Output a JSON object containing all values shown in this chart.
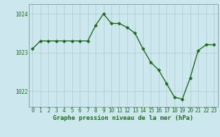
{
  "hours": [
    0,
    1,
    2,
    3,
    4,
    5,
    6,
    7,
    8,
    9,
    10,
    11,
    12,
    13,
    14,
    15,
    16,
    17,
    18,
    19,
    20,
    21,
    22,
    23
  ],
  "pressure": [
    1023.1,
    1023.3,
    1023.3,
    1023.3,
    1023.3,
    1023.3,
    1023.3,
    1023.3,
    1023.7,
    1024.0,
    1023.75,
    1023.75,
    1023.65,
    1023.5,
    1023.1,
    1022.75,
    1022.55,
    1022.2,
    1021.85,
    1021.8,
    1022.35,
    1023.05,
    1023.2,
    1023.2
  ],
  "line_color": "#1a6b1a",
  "marker_color": "#1a6b1a",
  "bg_color": "#cce8ee",
  "grid_color": "#b0c8cc",
  "border_color": "#7a9a9a",
  "xlabel": "Graphe pression niveau de la mer (hPa)",
  "xlabel_color": "#1a6b1a",
  "tick_color": "#1a6b1a",
  "ylim": [
    1021.6,
    1024.25
  ],
  "yticks": [
    1022,
    1023,
    1024
  ],
  "xticks": [
    0,
    1,
    2,
    3,
    4,
    5,
    6,
    7,
    8,
    9,
    10,
    11,
    12,
    13,
    14,
    15,
    16,
    17,
    18,
    19,
    20,
    21,
    22,
    23
  ],
  "marker_size": 2.5,
  "line_width": 1.0,
  "xlabel_fontsize": 6.5,
  "tick_fontsize": 5.5
}
